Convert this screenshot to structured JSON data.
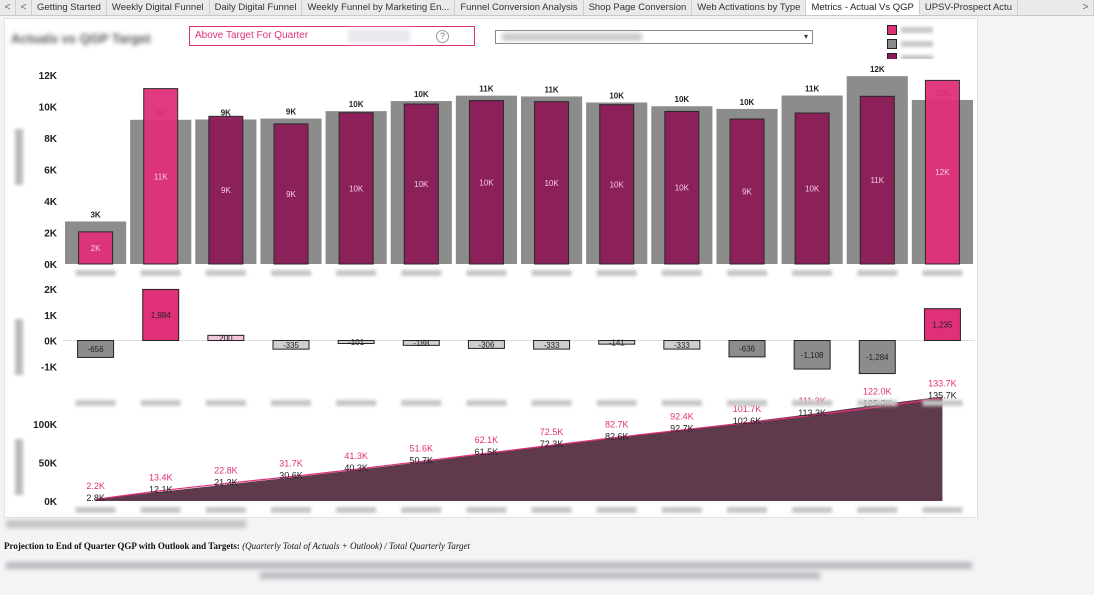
{
  "tabs": [
    {
      "label": "Getting Started"
    },
    {
      "label": "Weekly Digital Funnel"
    },
    {
      "label": "Daily Digital Funnel"
    },
    {
      "label": "Weekly Funnel by Marketing En..."
    },
    {
      "label": "Funnel Conversion Analysis"
    },
    {
      "label": "Shop Page Conversion"
    },
    {
      "label": "Web Activations by Type"
    },
    {
      "label": "Metrics - Actual Vs QGP",
      "active": true
    },
    {
      "label": "UPSV-Prospect Actu"
    }
  ],
  "nav": {
    "prev": "<",
    "first": "<",
    "next": ">"
  },
  "filter": {
    "value": "Above Target For Quarter",
    "help": "?"
  },
  "dropdown": {
    "arrow": "▾"
  },
  "colors": {
    "target_gray": "#8c8c8c",
    "above": "#e0307a",
    "actual": "#8d1b56",
    "outline": "#222222",
    "line_pink": "#e0307a",
    "area": "#5e3a4c"
  },
  "chart_data": [
    {
      "type": "bar",
      "name": "actual-vs-target",
      "ylim": [
        0,
        12500
      ],
      "ticks": [
        "0K",
        "2K",
        "4K",
        "6K",
        "8K",
        "10K",
        "12K"
      ],
      "target_labels": [
        "3K",
        "9K",
        "9K",
        "9K",
        "10K",
        "10K",
        "11K",
        "11K",
        "10K",
        "10K",
        "10K",
        "11K",
        "12K",
        "10K"
      ],
      "actual_labels": [
        "2K",
        "11K",
        "9K",
        "9K",
        "10K",
        "10K",
        "10K",
        "10K",
        "10K",
        "10K",
        "9K",
        "10K",
        "11K",
        "12K"
      ],
      "series": [
        {
          "values": [
            2700,
            9150,
            9170,
            9230,
            9700,
            10340,
            10680,
            10630,
            10250,
            10010,
            9840,
            10690,
            11920,
            10410
          ]
        },
        {
          "values": [
            2040,
            11130,
            9370,
            8890,
            9600,
            10150,
            10370,
            10300,
            10110,
            9680,
            9200,
            9580,
            10640,
            11650
          ]
        }
      ],
      "above": [
        true,
        true,
        false,
        false,
        false,
        false,
        false,
        false,
        false,
        false,
        false,
        false,
        false,
        true
      ]
    },
    {
      "type": "bar",
      "name": "variance",
      "ylim": [
        -1300,
        2000
      ],
      "ticks": [
        "-1K",
        "0K",
        "1K",
        "2K"
      ],
      "values": [
        -656,
        1984,
        200,
        -335,
        -101,
        -188,
        -306,
        -333,
        -141,
        -333,
        -636,
        -1108,
        -1284,
        1235
      ],
      "labels": [
        "-656",
        "1,984",
        "200",
        "-335",
        "-101",
        "-188",
        "-306",
        "-333",
        "-141",
        "-333",
        "-636",
        "-1,108",
        "-1,284",
        "1,235"
      ]
    },
    {
      "type": "area",
      "name": "cumulative",
      "ylim": [
        0,
        130000
      ],
      "ticks": [
        "0K",
        "50K",
        "100K"
      ],
      "actual": [
        2200,
        13400,
        22800,
        31700,
        41300,
        51600,
        62100,
        72500,
        82700,
        92400,
        101700,
        111300,
        122000,
        133700
      ],
      "target": [
        2800,
        12100,
        21300,
        30600,
        40300,
        50700,
        61500,
        72300,
        82600,
        92700,
        102600,
        113300,
        125200,
        135700
      ],
      "actual_labels": [
        "2.2K",
        "13.4K",
        "22.8K",
        "31.7K",
        "41.3K",
        "51.6K",
        "62.1K",
        "72.5K",
        "82.7K",
        "92.4K",
        "101.7K",
        "111.3K",
        "122.0K",
        "133.7K"
      ],
      "target_labels": [
        "2.8K",
        "12.1K",
        "21.3K",
        "30.6K",
        "40.3K",
        "50.7K",
        "61.5K",
        "72.3K",
        "82.6K",
        "92.7K",
        "102.6K",
        "113.3K",
        "125.2K",
        "135.7K"
      ]
    }
  ],
  "footer": {
    "bold": "Projection to End of Quarter QGP with Outlook and Targets:",
    "italic": "(Quarterly Total of Actuals + Outlook) / Total Quarterly Target"
  }
}
